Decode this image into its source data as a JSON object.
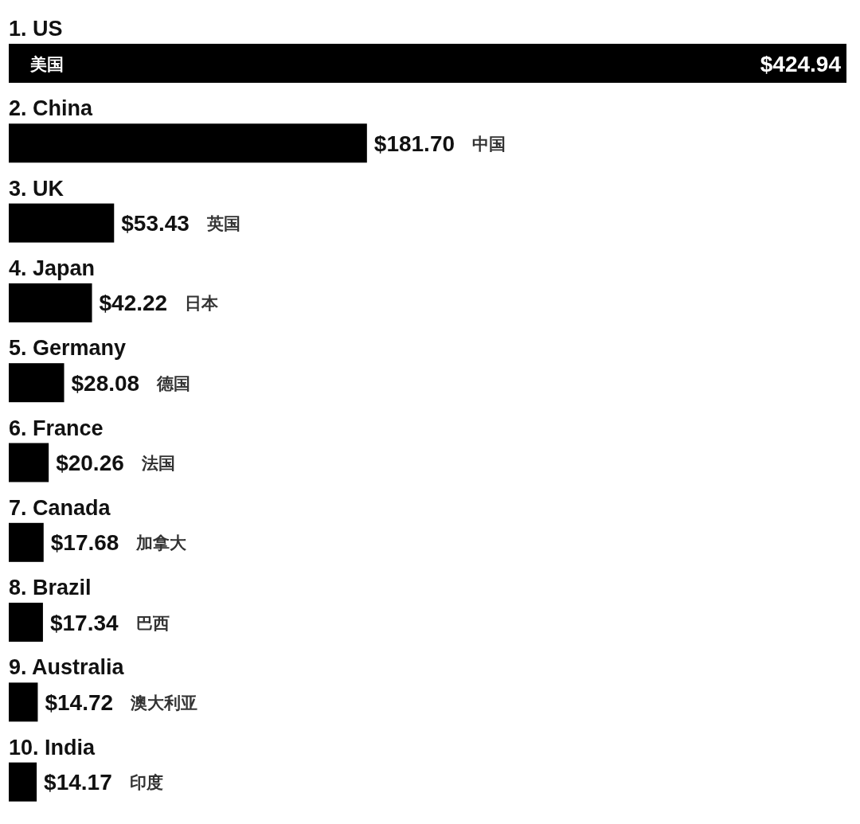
{
  "chart_data": {
    "type": "bar",
    "orientation": "horizontal",
    "categories": [
      "1. US",
      "2. China",
      "3. UK",
      "4. Japan",
      "5. Germany",
      "6. France",
      "7. Canada",
      "8. Brazil",
      "9. Australia",
      "10. India"
    ],
    "values": [
      424.94,
      181.7,
      53.43,
      42.22,
      28.08,
      20.26,
      17.68,
      17.34,
      14.72,
      14.17
    ],
    "color": "#000000",
    "value_labels": [
      "$424.94",
      "$181.70",
      "$53.43",
      "$42.22",
      "$28.08",
      "$20.26",
      "$17.68",
      "$17.34",
      "$14.72",
      "$14.17"
    ],
    "annotations": [
      "美国",
      "中国",
      "英国",
      "日本",
      "德国",
      "法国",
      "加拿大",
      "巴西",
      "澳大利亚",
      "印度"
    ]
  }
}
